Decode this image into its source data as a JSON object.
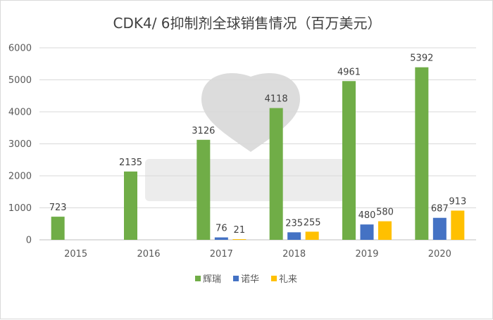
{
  "chart_data": {
    "type": "bar",
    "title": "CDK4/ 6抑制剂全球销售情况（百万美元）",
    "xlabel": "",
    "ylabel": "",
    "categories": [
      "2015",
      "2016",
      "2017",
      "2018",
      "2019",
      "2020"
    ],
    "ylim": [
      0,
      6000
    ],
    "yticks": [
      0,
      1000,
      2000,
      3000,
      4000,
      5000,
      6000
    ],
    "grid": true,
    "legend_position": "bottom",
    "series": [
      {
        "name": "辉瑞",
        "color": "#70ad47",
        "values": [
          723,
          2135,
          3126,
          4118,
          4961,
          5392
        ]
      },
      {
        "name": "诺华",
        "color": "#4472c4",
        "values": [
          null,
          null,
          76,
          235,
          480,
          687
        ]
      },
      {
        "name": "礼来",
        "color": "#ffc000",
        "values": [
          null,
          null,
          21,
          255,
          580,
          913
        ]
      }
    ]
  }
}
